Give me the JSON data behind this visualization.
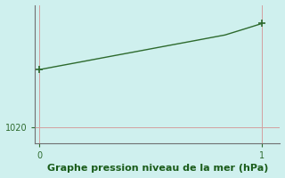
{
  "x_data": [
    0.0,
    0.083,
    0.167,
    0.25,
    0.333,
    0.417,
    0.5,
    0.583,
    0.667,
    0.75,
    0.833,
    0.917,
    1.0
  ],
  "y_data": [
    1022.5,
    1022.65,
    1022.8,
    1022.95,
    1023.1,
    1023.25,
    1023.4,
    1023.55,
    1023.7,
    1023.85,
    1024.0,
    1024.25,
    1024.5
  ],
  "bg_color": "#cff0ee",
  "line_color": "#2d6a2d",
  "marker": "+",
  "marker_size": 6,
  "grid_color": "#d4a0a0",
  "xlabel": "Graphe pression niveau de la mer (hPa)",
  "xlabel_color": "#1a5c1a",
  "xlabel_fontsize": 8,
  "ytick_labels": [
    "1020"
  ],
  "ytick_values": [
    1020
  ],
  "xtick_values": [
    0,
    1
  ],
  "xtick_labels": [
    "0",
    "1"
  ],
  "xlim": [
    -0.02,
    1.08
  ],
  "ylim": [
    1019.3,
    1025.3
  ],
  "tick_color": "#2d6a2d",
  "spine_color": "#707070"
}
